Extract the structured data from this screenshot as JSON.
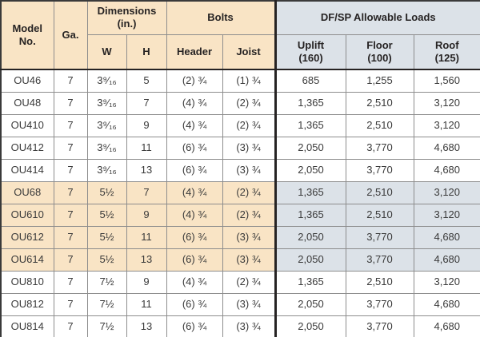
{
  "colors": {
    "tan": "#f9e4c5",
    "gray": "#dce2e8",
    "grid": "#8d8d8d",
    "heavy_line": "#262323"
  },
  "header": {
    "model_no": "Model\nNo.",
    "ga": "Ga.",
    "dimensions": "Dimensions\n(in.)",
    "w": "W",
    "h": "H",
    "bolts": "Bolts",
    "bolts_header": "Header",
    "bolts_joist": "Joist",
    "loads": "DF/SP Allowable Loads",
    "uplift": "Uplift\n(160)",
    "floor": "Floor\n(100)",
    "roof": "Roof\n(125)"
  },
  "rows": [
    {
      "model": "OU46",
      "ga": "7",
      "w": "3⁹⁄₁₆",
      "h": "5",
      "header": "(2) ¾",
      "joist": "(1) ¾",
      "uplift": "685",
      "floor": "1,255",
      "roof": "1,560",
      "highlight": false
    },
    {
      "model": "OU48",
      "ga": "7",
      "w": "3⁹⁄₁₆",
      "h": "7",
      "header": "(4) ¾",
      "joist": "(2) ¾",
      "uplift": "1,365",
      "floor": "2,510",
      "roof": "3,120",
      "highlight": false
    },
    {
      "model": "OU410",
      "ga": "7",
      "w": "3⁹⁄₁₆",
      "h": "9",
      "header": "(4) ¾",
      "joist": "(2) ¾",
      "uplift": "1,365",
      "floor": "2,510",
      "roof": "3,120",
      "highlight": false
    },
    {
      "model": "OU412",
      "ga": "7",
      "w": "3⁹⁄₁₆",
      "h": "11",
      "header": "(6) ¾",
      "joist": "(3) ¾",
      "uplift": "2,050",
      "floor": "3,770",
      "roof": "4,680",
      "highlight": false
    },
    {
      "model": "OU414",
      "ga": "7",
      "w": "3⁹⁄₁₆",
      "h": "13",
      "header": "(6) ¾",
      "joist": "(3) ¾",
      "uplift": "2,050",
      "floor": "3,770",
      "roof": "4,680",
      "highlight": false
    },
    {
      "model": "OU68",
      "ga": "7",
      "w": "5½",
      "h": "7",
      "header": "(4) ¾",
      "joist": "(2) ¾",
      "uplift": "1,365",
      "floor": "2,510",
      "roof": "3,120",
      "highlight": true
    },
    {
      "model": "OU610",
      "ga": "7",
      "w": "5½",
      "h": "9",
      "header": "(4) ¾",
      "joist": "(2) ¾",
      "uplift": "1,365",
      "floor": "2,510",
      "roof": "3,120",
      "highlight": true
    },
    {
      "model": "OU612",
      "ga": "7",
      "w": "5½",
      "h": "11",
      "header": "(6) ¾",
      "joist": "(3) ¾",
      "uplift": "2,050",
      "floor": "3,770",
      "roof": "4,680",
      "highlight": true
    },
    {
      "model": "OU614",
      "ga": "7",
      "w": "5½",
      "h": "13",
      "header": "(6) ¾",
      "joist": "(3) ¾",
      "uplift": "2,050",
      "floor": "3,770",
      "roof": "4,680",
      "highlight": true
    },
    {
      "model": "OU810",
      "ga": "7",
      "w": "7½",
      "h": "9",
      "header": "(4) ¾",
      "joist": "(2) ¾",
      "uplift": "1,365",
      "floor": "2,510",
      "roof": "3,120",
      "highlight": false
    },
    {
      "model": "OU812",
      "ga": "7",
      "w": "7½",
      "h": "11",
      "header": "(6) ¾",
      "joist": "(3) ¾",
      "uplift": "2,050",
      "floor": "3,770",
      "roof": "4,680",
      "highlight": false
    },
    {
      "model": "OU814",
      "ga": "7",
      "w": "7½",
      "h": "13",
      "header": "(6) ¾",
      "joist": "(3) ¾",
      "uplift": "2,050",
      "floor": "3,770",
      "roof": "4,680",
      "highlight": false
    }
  ]
}
